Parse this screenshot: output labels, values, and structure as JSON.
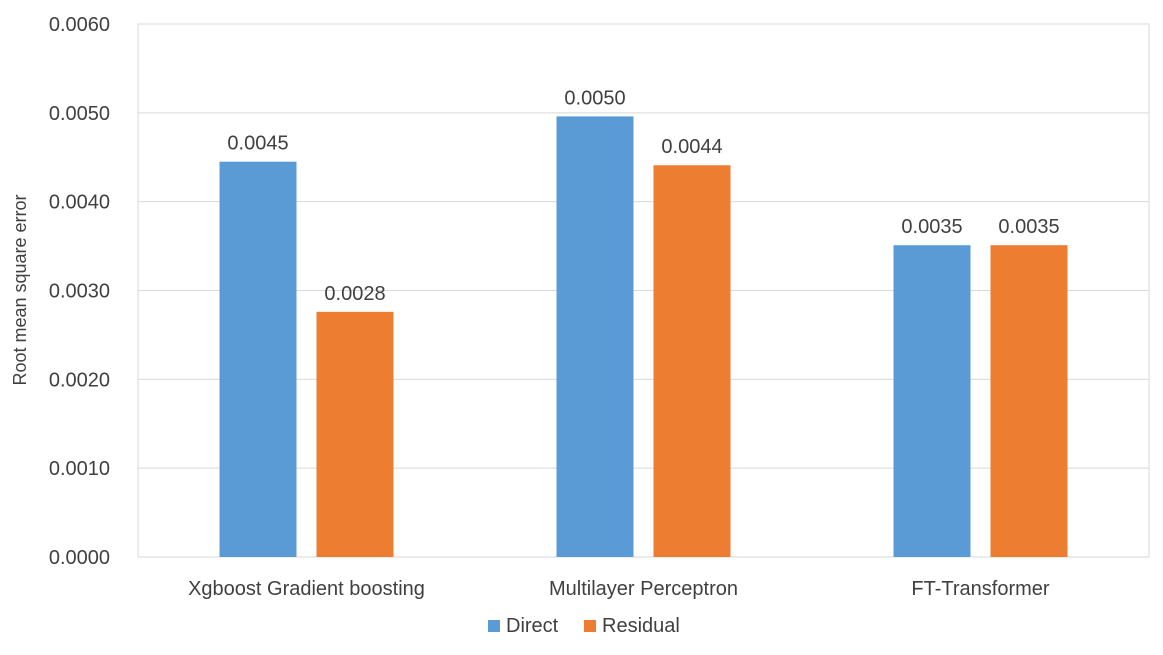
{
  "chart_data": {
    "type": "bar",
    "title": "",
    "xlabel": "",
    "ylabel": "Root mean square error",
    "ylim": [
      0,
      0.006
    ],
    "yticks": [
      "0.0000",
      "0.0010",
      "0.0020",
      "0.0030",
      "0.0040",
      "0.0050",
      "0.0060"
    ],
    "categories": [
      "Xgboost Gradient boosting",
      "Multilayer Perceptron",
      "FT-Transformer"
    ],
    "series": [
      {
        "name": "Direct",
        "color": "#5B9BD5",
        "values": [
          0.00445,
          0.00496,
          0.00351
        ],
        "labels": [
          "0.0045",
          "0.0050",
          "0.0035"
        ]
      },
      {
        "name": "Residual",
        "color": "#ED7D31",
        "values": [
          0.00276,
          0.00441,
          0.00351
        ],
        "labels": [
          "0.0028",
          "0.0044",
          "0.0035"
        ]
      }
    ],
    "grid": true,
    "legend_position": "bottom"
  }
}
